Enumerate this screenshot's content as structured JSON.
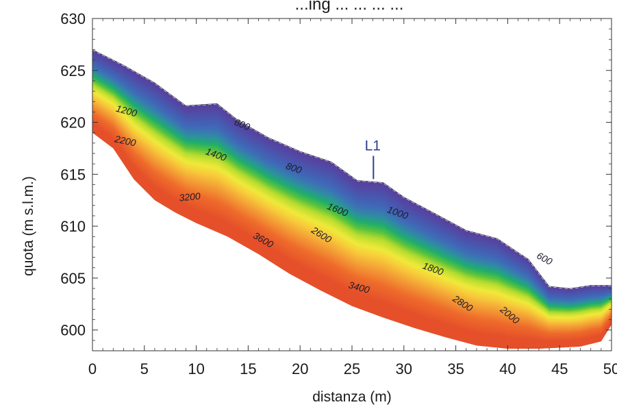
{
  "chart_data": {
    "type": "contour",
    "title_partial": "...ing ... ... ... ...",
    "xlabel": "distanza (m)",
    "ylabel": "quota (m s.l.m.)",
    "xlim": [
      0,
      50
    ],
    "ylim": [
      598,
      630
    ],
    "x_ticks": [
      "0",
      "5",
      "10",
      "15",
      "20",
      "25",
      "30",
      "35",
      "40",
      "45",
      "50"
    ],
    "y_ticks": [
      "600",
      "605",
      "610",
      "615",
      "620",
      "625",
      "630"
    ],
    "grid": false,
    "surface_profile": {
      "x": [
        0,
        3,
        6,
        9,
        12,
        14,
        17,
        20,
        23,
        25.5,
        28,
        30,
        33,
        36,
        39,
        42,
        44,
        46,
        48,
        50
      ],
      "y": [
        627,
        625.5,
        623.8,
        621.6,
        621.8,
        620.2,
        618.5,
        617.2,
        616.2,
        614.4,
        614.2,
        612.8,
        611.2,
        609.6,
        608.8,
        606.8,
        604.2,
        604.0,
        604.3,
        604.3
      ]
    },
    "base_profile": {
      "x": [
        0,
        2,
        4,
        6,
        8,
        10,
        13,
        16,
        19,
        22,
        25,
        28,
        31,
        34,
        37,
        40,
        43,
        45,
        47,
        49,
        50
      ],
      "y": [
        619,
        617.5,
        614.5,
        612.5,
        611.3,
        610.3,
        609.0,
        607.3,
        605.4,
        603.8,
        602.3,
        601.2,
        600.2,
        599.3,
        598.5,
        598.2,
        598.2,
        598.3,
        598.4,
        598.9,
        600.5
      ]
    },
    "contour_levels": [
      600,
      800,
      1000,
      1200,
      1400,
      1600,
      1800,
      2000,
      2200,
      2600,
      2800,
      3200,
      3400,
      3600
    ],
    "contour_labels": [
      {
        "text": "600",
        "x": 14.3,
        "y": 619.5,
        "angle": 22
      },
      {
        "text": "1200",
        "x": 3.2,
        "y": 620.8,
        "angle": 15
      },
      {
        "text": "2200",
        "x": 3.1,
        "y": 617.9,
        "angle": 12
      },
      {
        "text": "1400",
        "x": 11.8,
        "y": 616.6,
        "angle": 20
      },
      {
        "text": "800",
        "x": 19.3,
        "y": 615.3,
        "angle": 18
      },
      {
        "text": "3200",
        "x": 9.4,
        "y": 612.5,
        "angle": -5
      },
      {
        "text": "1600",
        "x": 23.5,
        "y": 611.3,
        "angle": 22
      },
      {
        "text": "1000",
        "x": 29.3,
        "y": 611.0,
        "angle": 20
      },
      {
        "text": "3600",
        "x": 16.3,
        "y": 608.4,
        "angle": 30
      },
      {
        "text": "2600",
        "x": 21.9,
        "y": 608.9,
        "angle": 32
      },
      {
        "text": "1800",
        "x": 32.7,
        "y": 605.6,
        "angle": 20
      },
      {
        "text": "600",
        "x": 43.4,
        "y": 606.6,
        "angle": 28
      },
      {
        "text": "3400",
        "x": 25.6,
        "y": 603.8,
        "angle": 15
      },
      {
        "text": "2800",
        "x": 35.5,
        "y": 602.3,
        "angle": 33
      },
      {
        "text": "2000",
        "x": 40.0,
        "y": 601.2,
        "angle": 40
      }
    ],
    "annotations": [
      {
        "text": "L1",
        "x": 27.0,
        "y": 617.3,
        "marker_bottom_y": 614.4
      }
    ],
    "colorscale": [
      "#5a3d9b",
      "#4a55ad",
      "#3e6cb8",
      "#2e8fa0",
      "#1fae6a",
      "#5cc33c",
      "#b8dc2e",
      "#f0ea3a",
      "#f7c93a",
      "#f39c35",
      "#ee6a2b",
      "#e5502a"
    ]
  }
}
